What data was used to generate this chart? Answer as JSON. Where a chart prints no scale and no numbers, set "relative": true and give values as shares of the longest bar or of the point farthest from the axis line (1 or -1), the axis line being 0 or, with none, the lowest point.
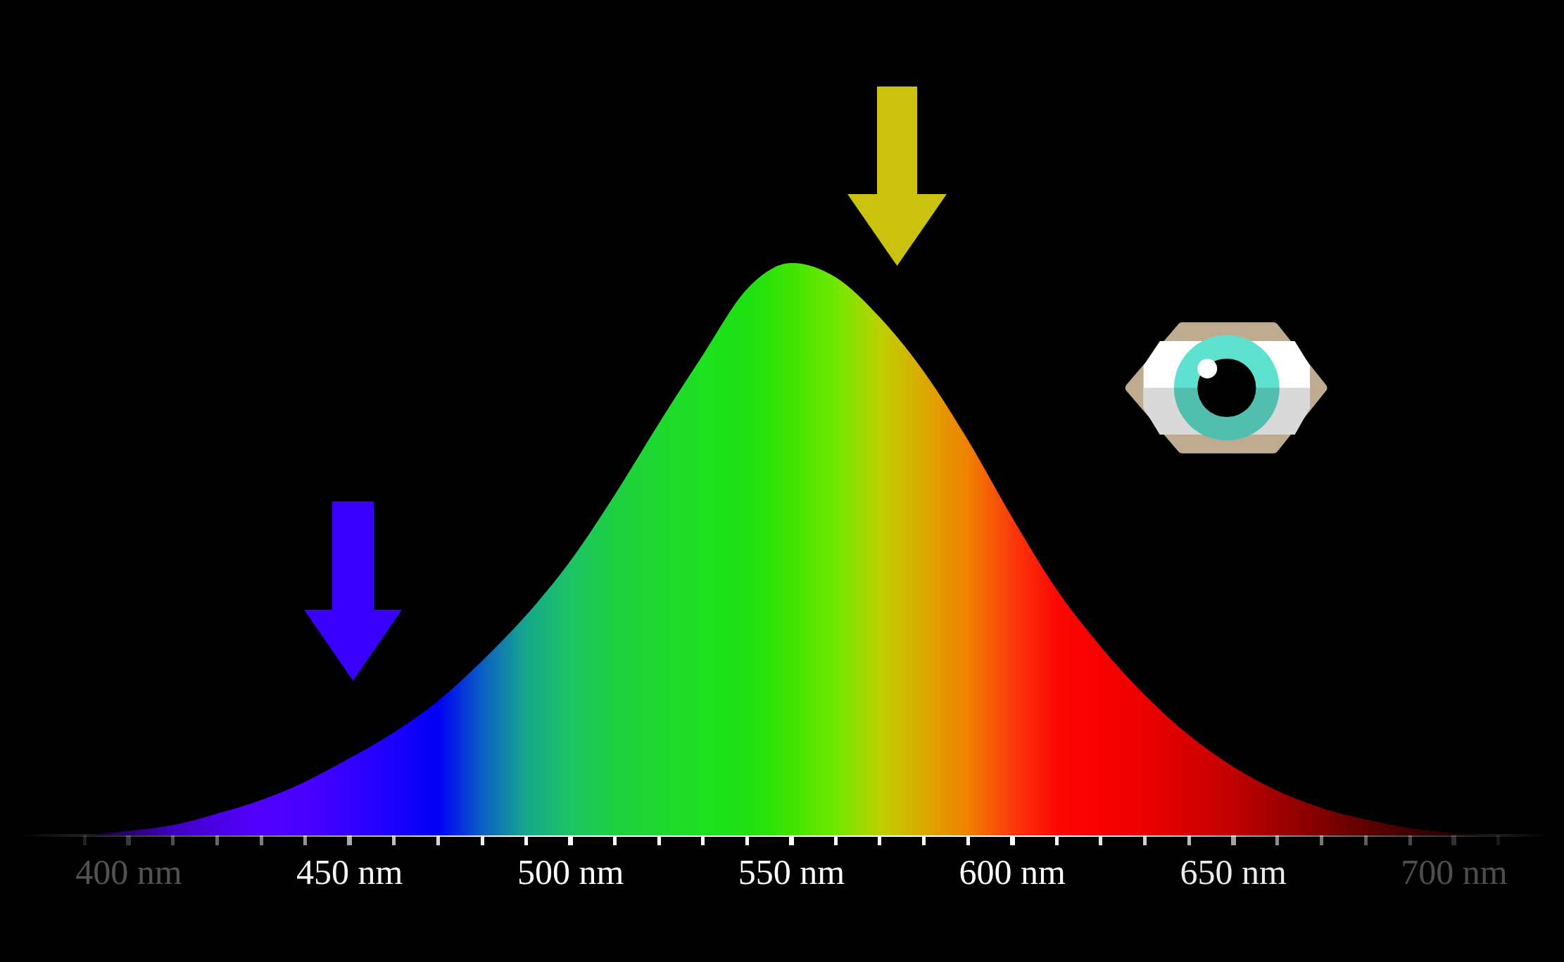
{
  "chart_data": {
    "type": "area",
    "relative": true,
    "x": [
      390,
      400,
      410,
      420,
      430,
      440,
      450,
      460,
      470,
      480,
      490,
      500,
      510,
      520,
      530,
      540,
      550,
      560,
      570,
      580,
      590,
      600,
      610,
      620,
      630,
      640,
      650,
      660,
      670,
      680,
      690,
      700,
      710
    ],
    "values": [
      0,
      0.008,
      0.018,
      0.038,
      0.062,
      0.094,
      0.135,
      0.18,
      0.235,
      0.305,
      0.385,
      0.48,
      0.595,
      0.72,
      0.84,
      0.955,
      1,
      0.975,
      0.905,
      0.81,
      0.69,
      0.555,
      0.43,
      0.33,
      0.245,
      0.175,
      0.12,
      0.078,
      0.048,
      0.028,
      0.013,
      0.004,
      0
    ],
    "colors": [
      "#140030",
      "#2a0078",
      "#4000c0",
      "#4c00e6",
      "#5200ff",
      "#4a00ff",
      "#3400ff",
      "#1c00ff",
      "#0000f5",
      "#0b5fc4",
      "#17a88c",
      "#1cc464",
      "#1ed040",
      "#1ed830",
      "#1ee020",
      "#1ee012",
      "#40e400",
      "#70e800",
      "#bcd000",
      "#dca800",
      "#f08000",
      "#fb3a0c",
      "#fc0804",
      "#f80000",
      "#ec0000",
      "#d80000",
      "#c00000",
      "#a00000",
      "#800000",
      "#600000",
      "#400000",
      "#280000",
      "#100000"
    ],
    "xlim": [
      375,
      722
    ],
    "xticks": [
      {
        "value": 390,
        "label": null
      },
      {
        "value": 400,
        "label": "400 nm"
      },
      {
        "value": 410,
        "label": null
      },
      {
        "value": 420,
        "label": null
      },
      {
        "value": 430,
        "label": null
      },
      {
        "value": 440,
        "label": null
      },
      {
        "value": 450,
        "label": "450 nm"
      },
      {
        "value": 460,
        "label": null
      },
      {
        "value": 470,
        "label": null
      },
      {
        "value": 480,
        "label": null
      },
      {
        "value": 490,
        "label": null
      },
      {
        "value": 500,
        "label": "500 nm"
      },
      {
        "value": 510,
        "label": null
      },
      {
        "value": 520,
        "label": null
      },
      {
        "value": 530,
        "label": null
      },
      {
        "value": 540,
        "label": null
      },
      {
        "value": 550,
        "label": "550 nm"
      },
      {
        "value": 560,
        "label": null
      },
      {
        "value": 570,
        "label": null
      },
      {
        "value": 580,
        "label": null
      },
      {
        "value": 590,
        "label": null
      },
      {
        "value": 600,
        "label": "600 nm"
      },
      {
        "value": 610,
        "label": null
      },
      {
        "value": 620,
        "label": null
      },
      {
        "value": 630,
        "label": null
      },
      {
        "value": 640,
        "label": null
      },
      {
        "value": 650,
        "label": "650 nm"
      },
      {
        "value": 660,
        "label": null
      },
      {
        "value": 670,
        "label": null
      },
      {
        "value": 680,
        "label": null
      },
      {
        "value": 690,
        "label": null
      },
      {
        "value": 700,
        "label": "700 nm"
      },
      {
        "value": 710,
        "label": null
      }
    ]
  }
}
